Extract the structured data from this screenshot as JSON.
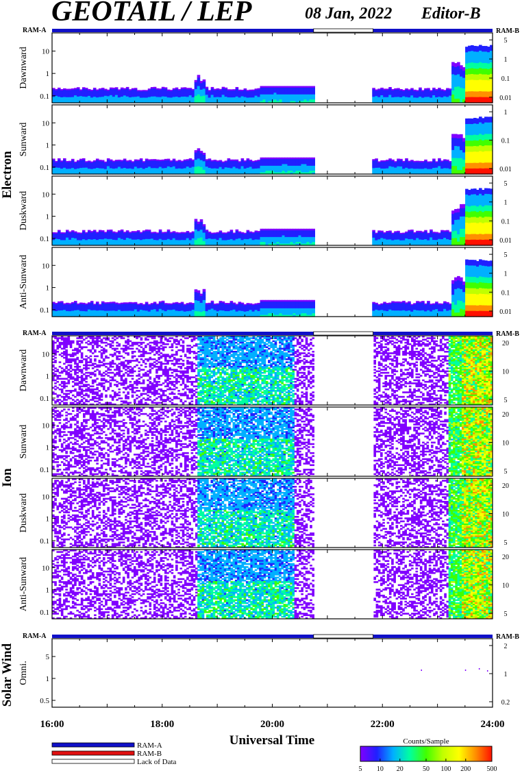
{
  "title": {
    "main": "GEOTAIL / LEP",
    "date": "08 Jan, 2022",
    "editor": "Editor-B"
  },
  "colors": {
    "ram_a": "#1010c8",
    "ram_b": "#e01010",
    "lack": "#ffffff",
    "colormap": [
      "#8000ff",
      "#2020ff",
      "#00b0ff",
      "#00ffa0",
      "#40ff00",
      "#c0ff00",
      "#ffff00",
      "#ff9000",
      "#ff1000"
    ]
  },
  "chart_data": [
    {
      "type": "heatmap",
      "group": "Electron",
      "panels": [
        {
          "ylabel": "Dawnward",
          "y_ticks": [
            "10",
            "1",
            "0.1"
          ],
          "y_right_ticks": [
            "5",
            "1",
            "0.1",
            "0.01"
          ]
        },
        {
          "ylabel": "Sunward",
          "y_ticks": [
            "10",
            "1",
            "0.1"
          ],
          "y_right_ticks": [
            "1",
            "0.1",
            "0.01"
          ]
        },
        {
          "ylabel": "Duskward",
          "y_ticks": [
            "10",
            "1",
            "0.1"
          ],
          "y_right_ticks": [
            "5",
            "1",
            "0.1",
            "0.01"
          ]
        },
        {
          "ylabel": "Anti-Sunward",
          "y_ticks": [
            "10",
            "1",
            "0.1"
          ],
          "y_right_ticks": [
            "5",
            "1",
            "0.1",
            "0.01"
          ]
        }
      ],
      "y_scale": "log",
      "mode_bar": {
        "left_label": "RAM-A",
        "right_label": "RAM-B"
      },
      "data_coverage_hours": [
        [
          16.0,
          20.75
        ],
        [
          21.83,
          24.0
        ]
      ]
    },
    {
      "type": "heatmap",
      "group": "Ion",
      "panels": [
        {
          "ylabel": "Dawnward",
          "y_ticks": [
            "10",
            "1",
            "0.1"
          ],
          "y_right_ticks": [
            "20",
            "10",
            "5"
          ]
        },
        {
          "ylabel": "Sunward",
          "y_ticks": [
            "10",
            "1",
            "0.1"
          ],
          "y_right_ticks": [
            "20",
            "10",
            "5"
          ]
        },
        {
          "ylabel": "Duskward",
          "y_ticks": [
            "10",
            "1",
            "0.1"
          ],
          "y_right_ticks": [
            "20",
            "10",
            "5"
          ]
        },
        {
          "ylabel": "Anti-Sunward",
          "y_ticks": [
            "10",
            "1",
            "0.1"
          ],
          "y_right_ticks": [
            "20",
            "10",
            "5"
          ]
        }
      ],
      "y_scale": "log",
      "mode_bar": {
        "left_label": "RAM-A",
        "right_label": "RAM-B"
      },
      "data_coverage_hours": [
        [
          16.0,
          20.75
        ],
        [
          21.83,
          24.0
        ]
      ]
    },
    {
      "type": "heatmap",
      "group": "Solar Wind",
      "panels": [
        {
          "ylabel": "Omni.",
          "y_ticks": [
            "5",
            "1",
            "0.5"
          ],
          "y_right_ticks": [
            "2",
            "1",
            "0.2"
          ]
        }
      ],
      "y_scale": "log",
      "mode_bar": {
        "left_label": "RAM-A",
        "right_label": "RAM-B"
      },
      "data_coverage_hours": [
        [
          16.0,
          20.75
        ],
        [
          21.83,
          24.0
        ]
      ]
    }
  ],
  "x_axis": {
    "label": "Universal Time",
    "ticks": [
      "16:00",
      "18:00",
      "20:00",
      "22:00",
      "24:00"
    ],
    "range_hours": [
      16,
      24
    ]
  },
  "legend": {
    "items": [
      {
        "label": "RAM-A",
        "color": "#1010c8"
      },
      {
        "label": "RAM-B",
        "color": "#e01010"
      },
      {
        "label": "Lack of Data",
        "color": "#ffffff"
      }
    ]
  },
  "colorbar": {
    "title": "Counts/Sample",
    "ticks": [
      "5",
      "10",
      "20",
      "50",
      "100",
      "200",
      "500"
    ],
    "tick_values": [
      5,
      10,
      20,
      50,
      100,
      200,
      500
    ],
    "range": [
      5,
      500
    ]
  }
}
